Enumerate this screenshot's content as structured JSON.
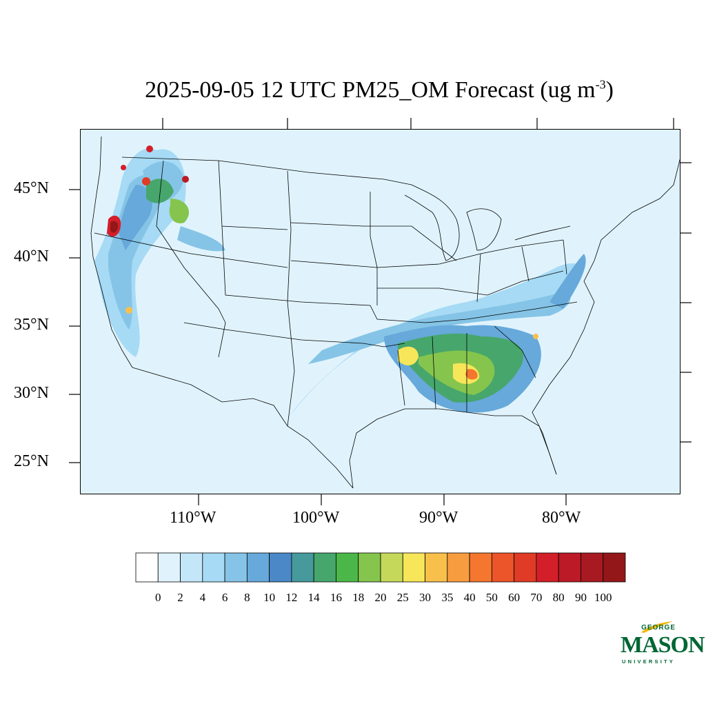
{
  "title": {
    "main": "2025-09-05 12 UTC PM25_OM Forecast (ug m",
    "superscript": "-3",
    "close": ")"
  },
  "axes": {
    "latitude_labels": [
      "45°N",
      "40°N",
      "35°N",
      "30°N",
      "25°N"
    ],
    "longitude_labels": [
      "110°W",
      "100°W",
      "90°W",
      "80°W"
    ]
  },
  "colorbar": {
    "labels": [
      "0",
      "2",
      "4",
      "6",
      "8",
      "10",
      "12",
      "14",
      "16",
      "18",
      "20",
      "25",
      "30",
      "35",
      "40",
      "50",
      "60",
      "70",
      "80",
      "90",
      "100"
    ],
    "colors": [
      "#ffffff",
      "#e0f3fc",
      "#c3e7f9",
      "#a6daf5",
      "#85c4e6",
      "#66a9da",
      "#4b88c8",
      "#469a9b",
      "#47a66c",
      "#4cb749",
      "#85c54e",
      "#c5d85a",
      "#f7e659",
      "#f8c04b",
      "#f89d3f",
      "#f4762f",
      "#ec5429",
      "#df3b26",
      "#d31f29",
      "#bc1a26",
      "#a81a21",
      "#931719"
    ]
  },
  "logo": {
    "george": "GEORGE",
    "mason": "MASON",
    "university": "UNIVERSITY"
  }
}
